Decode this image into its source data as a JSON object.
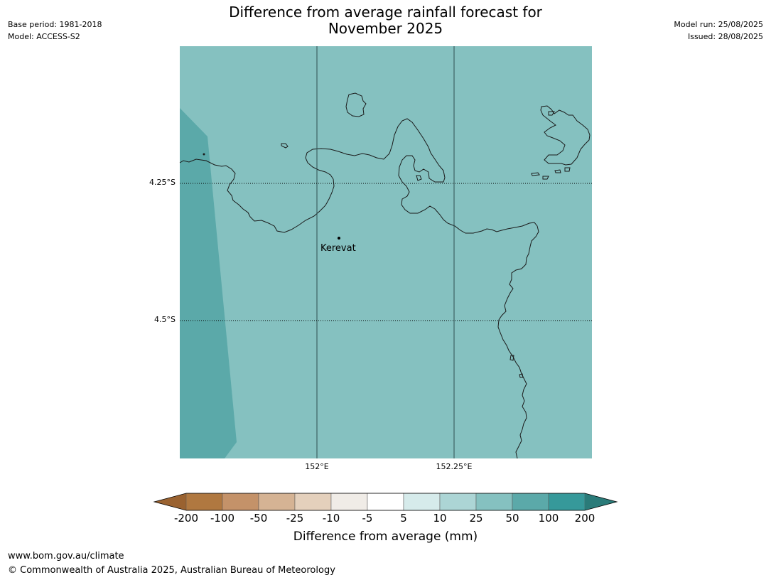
{
  "title": {
    "line1": "Difference from average rainfall forecast for",
    "line2": "November 2025"
  },
  "meta_left": {
    "base_period": "Base period: 1981-2018",
    "model": "Model: ACCESS-S2"
  },
  "meta_right": {
    "model_run": "Model run: 25/08/2025",
    "issued": "Issued: 28/08/2025"
  },
  "map": {
    "lat_labels": [
      "4.25°S",
      "4.5°S"
    ],
    "lon_labels": [
      "152°E",
      "152.25°E"
    ],
    "place": {
      "name": "Kerevat"
    },
    "fill_colors": {
      "main": "#85c1c0",
      "wetter": "#5ba9a9"
    },
    "fill_categories": [
      "25 to 50",
      "50 to 100"
    ]
  },
  "colorbar": {
    "ticks": [
      "-200",
      "-100",
      "-50",
      "-25",
      "-10",
      "-5",
      "5",
      "10",
      "25",
      "50",
      "100",
      "200"
    ],
    "colors": [
      "#9a6230",
      "#b07840",
      "#c49269",
      "#d5b394",
      "#e4d0bc",
      "#f0ece7",
      "#ffffff",
      "#d6ebeb",
      "#acd5d5",
      "#85c1c0",
      "#5ba9a9",
      "#36999a",
      "#2a7b79"
    ],
    "label": "Difference from average (mm)"
  },
  "footer": {
    "url": "www.bom.gov.au/climate",
    "copyright": "© Commonwealth of Australia 2025, Australian Bureau of Meteorology"
  }
}
